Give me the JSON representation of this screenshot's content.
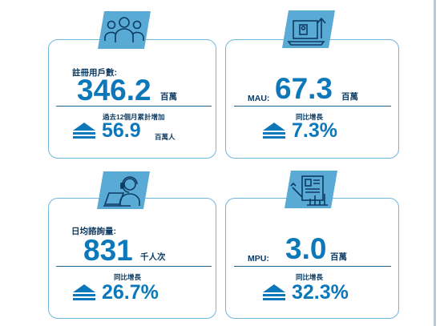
{
  "colors": {
    "accent": "#0c78b9",
    "dark_text": "#0c3b63",
    "card_border": "#6fb6dd",
    "icon_fill": "#5aaad6"
  },
  "cards": [
    {
      "icon": "users-group-icon",
      "label": "註冊用戶數:",
      "value": "346.2",
      "unit": "百萬",
      "sub_label": "過去12個月累計增加",
      "growth": "56.9",
      "growth_unit": "百萬人"
    },
    {
      "icon": "laptop-growth-icon",
      "label": "MAU:",
      "value": "67.3",
      "unit": "百萬",
      "sub_label": "同比增長",
      "growth": "7.3%"
    },
    {
      "icon": "customer-service-agent-icon",
      "label": "日均諮詢量:",
      "value": "831",
      "unit": "千人次",
      "sub_label": "同比增長",
      "growth": "26.7%"
    },
    {
      "icon": "document-chart-icon",
      "label": "MPU:",
      "value": "3.0",
      "unit": "百萬",
      "sub_label": "同比增長",
      "growth": "32.3%"
    }
  ]
}
